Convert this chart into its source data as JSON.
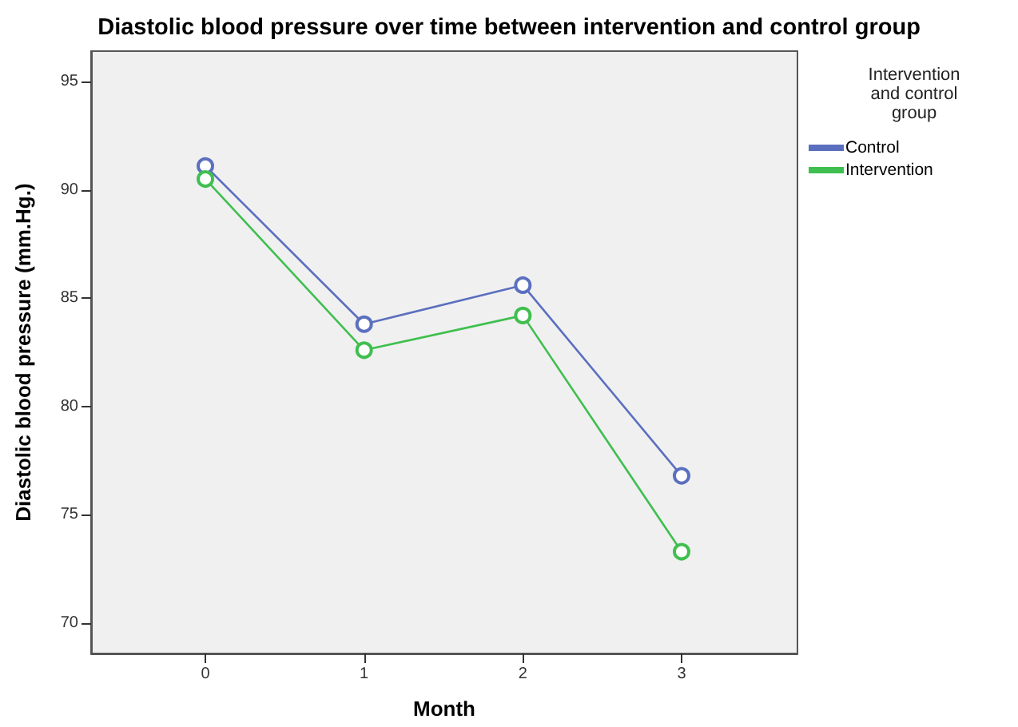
{
  "chart_data": {
    "type": "line",
    "title": "Diastolic blood pressure over time between intervention and control group",
    "xlabel": "Month",
    "ylabel": "Diastolic blood pressure (mm.Hg.)",
    "legend_title": "Intervention and control group",
    "x": [
      0,
      1,
      2,
      3
    ],
    "xlim": [
      -0.72,
      3.73
    ],
    "xticks": [
      0,
      1,
      2,
      3
    ],
    "ylim": [
      68.6,
      96.4
    ],
    "yticks": [
      70,
      75,
      80,
      85,
      90,
      95
    ],
    "series": [
      {
        "name": "Control",
        "color": "#5b6fbf",
        "values": [
          91.1,
          83.8,
          85.6,
          76.8
        ]
      },
      {
        "name": "Intervention",
        "color": "#3fbf4f",
        "values": [
          90.5,
          82.6,
          84.2,
          73.3
        ]
      }
    ],
    "marker": "circle",
    "line_style": "solid",
    "legend": "top right",
    "grid": false
  }
}
